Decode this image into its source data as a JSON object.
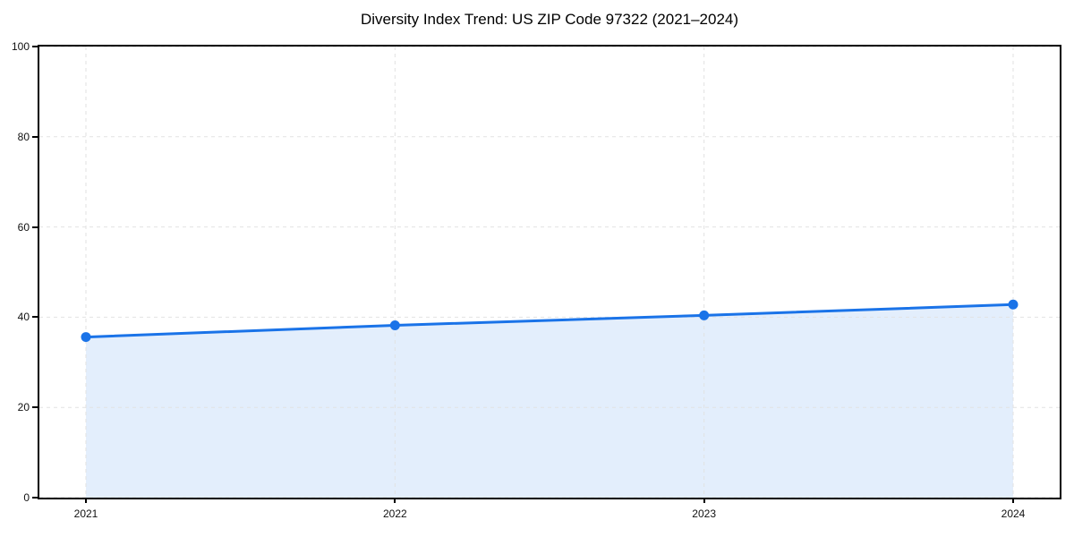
{
  "chart_data": {
    "type": "line",
    "title": "Diversity Index Trend: US ZIP Code 97322 (2021–2024)",
    "x": [
      "2021",
      "2022",
      "2023",
      "2024"
    ],
    "series": [
      {
        "name": "Diversity Index",
        "values": [
          35.6,
          38.2,
          40.4,
          42.8
        ]
      }
    ],
    "values": [
      35.6,
      38.2,
      40.4,
      42.8
    ],
    "xlabel": "",
    "ylabel": "",
    "ylim": [
      0,
      100
    ],
    "yticks": [
      0,
      20,
      40,
      60,
      80,
      100
    ],
    "grid": "dashed-both-axes",
    "legend_position": "none",
    "marker": "circle",
    "area_fill": true,
    "line_color": "#1a73e8",
    "marker_color": "#1a73e8",
    "fill_color": "rgba(26,115,232,0.12)",
    "grid_color": "#e2e2e2",
    "spine_color": "#000000",
    "background_color": "#ffffff"
  }
}
